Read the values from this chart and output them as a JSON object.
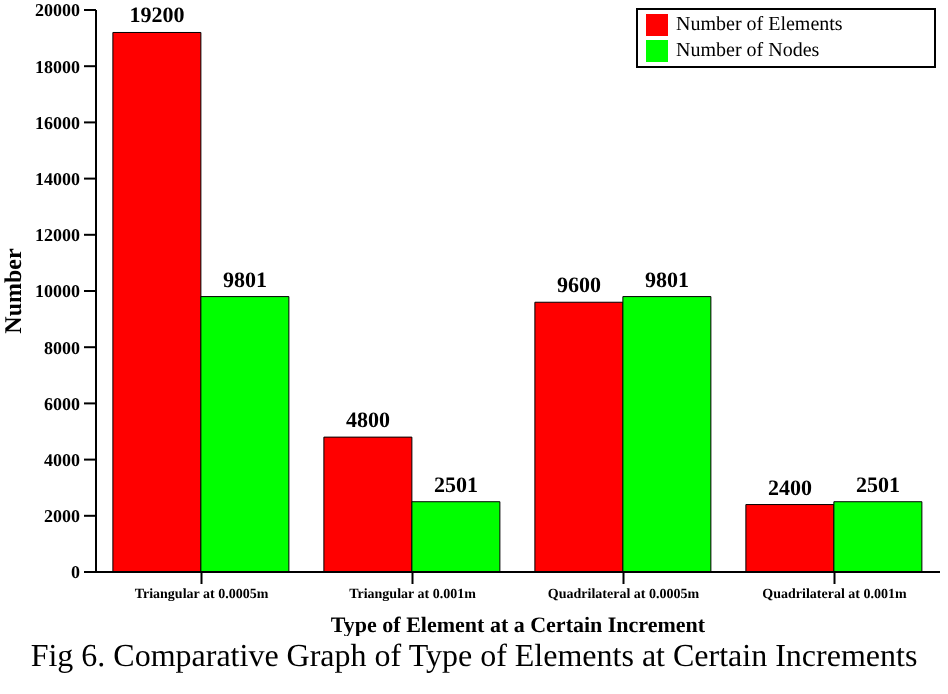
{
  "chart_data": {
    "type": "bar",
    "categories": [
      "Triangular at 0.0005m",
      "Triangular at 0.001m",
      "Quadrilateral at 0.0005m",
      "Quadrilateral at 0.001m"
    ],
    "series": [
      {
        "name": "Number of Elements",
        "color": "#ff0000",
        "values": [
          19200,
          4800,
          9600,
          2400
        ]
      },
      {
        "name": "Number of Nodes",
        "color": "#00ff00",
        "values": [
          9801,
          2501,
          9801,
          2501
        ]
      }
    ],
    "xlabel": "Type of Element at a Certain Increment",
    "ylabel": "Number",
    "ylim": [
      0,
      20000
    ],
    "yticks": [
      0,
      2000,
      4000,
      6000,
      8000,
      10000,
      12000,
      14000,
      16000,
      18000,
      20000
    ],
    "data_labels": true,
    "legend": "top right",
    "grid": false,
    "annotations": [
      "Fig 6. Comparative Graph of Type of Elements at Certain Increments"
    ]
  }
}
